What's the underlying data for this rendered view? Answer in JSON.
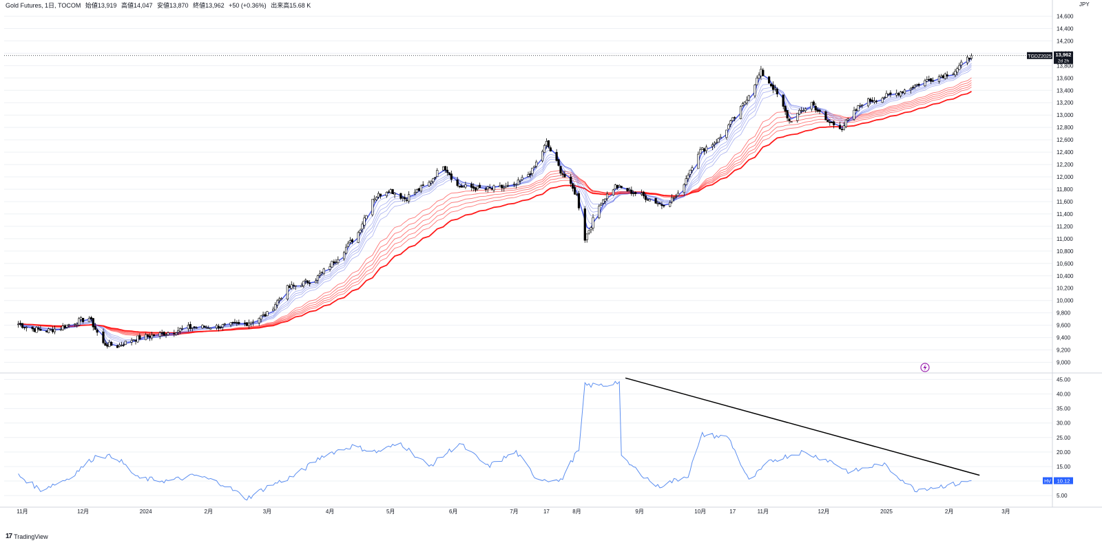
{
  "legend": {
    "symbol": "Gold Futures, 1日, TOCOM",
    "open_label": "始値",
    "open": "13,919",
    "high_label": "高値",
    "high": "14,047",
    "low_label": "安値",
    "low": "13,870",
    "close_label": "終値",
    "close": "13,962",
    "change": "+50 (+0.36%)",
    "volume_label": "出来高",
    "volume": "15.68 K"
  },
  "currency": "JPY",
  "brand": "TradingView",
  "price_tag": {
    "symbol": "TGDZ2025",
    "value": "13,962",
    "countdown": "2d 2h"
  },
  "hv_tag": {
    "name": "HV",
    "value": "10.12"
  },
  "colors": {
    "up_candle": "#ffffff",
    "down_candle": "#000000",
    "fast_ma": "#3f4fe0",
    "slow_ma": "#ff1a1a",
    "hv_line": "#5b8ef0",
    "trendline": "#000000",
    "grid": "#eef0f4"
  },
  "chart_data": [
    {
      "type": "candlestick",
      "title": "",
      "indicator": "Guppy Multiple Moving Average (fast: blue, slow: red)",
      "y_ticks": [
        "9,000",
        "9,200",
        "9,400",
        "9,600",
        "9,800",
        "10,000",
        "10,200",
        "10,400",
        "10,600",
        "10,800",
        "11,000",
        "11,200",
        "11,400",
        "11,600",
        "11,800",
        "12,000",
        "12,200",
        "12,400",
        "12,600",
        "12,800",
        "13,000",
        "13,200",
        "13,400",
        "13,600",
        "13,800",
        "14,000",
        "14,200",
        "14,400",
        "14,600"
      ],
      "ylim": [
        8850,
        14750
      ],
      "x_ticks": [
        "11月",
        "12月",
        "2024",
        "2月",
        "3月",
        "4月",
        "5月",
        "6月",
        "7月",
        "17",
        "8月",
        "9月",
        "10月",
        "17",
        "11月",
        "12月",
        "2025",
        "2月",
        "3月"
      ],
      "close_path": [
        {
          "d": "2023-10-30",
          "v": 9620
        },
        {
          "d": "2023-11-06",
          "v": 9540
        },
        {
          "d": "2023-11-13",
          "v": 9510
        },
        {
          "d": "2023-11-20",
          "v": 9560
        },
        {
          "d": "2023-11-27",
          "v": 9650
        },
        {
          "d": "2023-12-04",
          "v": 9720
        },
        {
          "d": "2023-12-11",
          "v": 9300
        },
        {
          "d": "2023-12-18",
          "v": 9260
        },
        {
          "d": "2023-12-26",
          "v": 9380
        },
        {
          "d": "2024-01-09",
          "v": 9460
        },
        {
          "d": "2024-01-22",
          "v": 9560
        },
        {
          "d": "2024-02-05",
          "v": 9580
        },
        {
          "d": "2024-02-19",
          "v": 9620
        },
        {
          "d": "2024-03-01",
          "v": 9780
        },
        {
          "d": "2024-03-11",
          "v": 10200
        },
        {
          "d": "2024-03-25",
          "v": 10350
        },
        {
          "d": "2024-04-05",
          "v": 10700
        },
        {
          "d": "2024-04-15",
          "v": 11100
        },
        {
          "d": "2024-04-22",
          "v": 11650
        },
        {
          "d": "2024-04-30",
          "v": 11800
        },
        {
          "d": "2024-05-08",
          "v": 11650
        },
        {
          "d": "2024-05-20",
          "v": 11900
        },
        {
          "d": "2024-05-27",
          "v": 12200
        },
        {
          "d": "2024-06-03",
          "v": 11850
        },
        {
          "d": "2024-06-17",
          "v": 11800
        },
        {
          "d": "2024-07-01",
          "v": 11850
        },
        {
          "d": "2024-07-10",
          "v": 12100
        },
        {
          "d": "2024-07-17",
          "v": 12550
        },
        {
          "d": "2024-07-24",
          "v": 12100
        },
        {
          "d": "2024-08-01",
          "v": 11700
        },
        {
          "d": "2024-08-05",
          "v": 11000
        },
        {
          "d": "2024-08-13",
          "v": 11600
        },
        {
          "d": "2024-08-20",
          "v": 11850
        },
        {
          "d": "2024-09-02",
          "v": 11700
        },
        {
          "d": "2024-09-12",
          "v": 11550
        },
        {
          "d": "2024-09-20",
          "v": 11700
        },
        {
          "d": "2024-09-30",
          "v": 12400
        },
        {
          "d": "2024-10-10",
          "v": 12600
        },
        {
          "d": "2024-10-21",
          "v": 13100
        },
        {
          "d": "2024-10-31",
          "v": 13700
        },
        {
          "d": "2024-11-07",
          "v": 13400
        },
        {
          "d": "2024-11-14",
          "v": 12900
        },
        {
          "d": "2024-11-25",
          "v": 13200
        },
        {
          "d": "2024-12-02",
          "v": 12900
        },
        {
          "d": "2024-12-10",
          "v": 12800
        },
        {
          "d": "2024-12-20",
          "v": 13200
        },
        {
          "d": "2025-01-06",
          "v": 13350
        },
        {
          "d": "2025-01-20",
          "v": 13550
        },
        {
          "d": "2025-02-03",
          "v": 13700
        },
        {
          "d": "2025-02-12",
          "v": 13962
        }
      ],
      "last": {
        "open": 13919,
        "high": 14047,
        "low": 13870,
        "close": 13962
      }
    },
    {
      "type": "line",
      "series_name": "HV",
      "y_ticks": [
        "5.00",
        "10.00",
        "15.00",
        "20.00",
        "25.00",
        "30.00",
        "35.00",
        "40.00",
        "45.00"
      ],
      "ylim": [
        1,
        47
      ],
      "values": [
        {
          "d": "2023-10-30",
          "v": 12
        },
        {
          "d": "2023-11-10",
          "v": 7
        },
        {
          "d": "2023-11-24",
          "v": 11
        },
        {
          "d": "2023-12-08",
          "v": 19
        },
        {
          "d": "2023-12-18",
          "v": 18
        },
        {
          "d": "2023-12-28",
          "v": 11
        },
        {
          "d": "2024-01-12",
          "v": 10
        },
        {
          "d": "2024-01-26",
          "v": 12
        },
        {
          "d": "2024-02-08",
          "v": 9
        },
        {
          "d": "2024-02-20",
          "v": 4
        },
        {
          "d": "2024-03-01",
          "v": 8
        },
        {
          "d": "2024-03-15",
          "v": 12
        },
        {
          "d": "2024-03-29",
          "v": 19
        },
        {
          "d": "2024-04-12",
          "v": 22
        },
        {
          "d": "2024-04-24",
          "v": 20
        },
        {
          "d": "2024-05-06",
          "v": 23
        },
        {
          "d": "2024-05-20",
          "v": 15
        },
        {
          "d": "2024-06-04",
          "v": 23
        },
        {
          "d": "2024-06-18",
          "v": 15
        },
        {
          "d": "2024-07-02",
          "v": 20
        },
        {
          "d": "2024-07-12",
          "v": 11
        },
        {
          "d": "2024-07-24",
          "v": 10
        },
        {
          "d": "2024-08-01",
          "v": 20
        },
        {
          "d": "2024-08-05",
          "v": 43
        },
        {
          "d": "2024-08-20",
          "v": 44
        },
        {
          "d": "2024-08-23",
          "v": 18
        },
        {
          "d": "2024-09-10",
          "v": 8
        },
        {
          "d": "2024-09-25",
          "v": 12
        },
        {
          "d": "2024-10-02",
          "v": 26
        },
        {
          "d": "2024-10-15",
          "v": 25
        },
        {
          "d": "2024-10-25",
          "v": 10
        },
        {
          "d": "2024-11-05",
          "v": 17
        },
        {
          "d": "2024-11-20",
          "v": 20
        },
        {
          "d": "2024-12-04",
          "v": 17
        },
        {
          "d": "2024-12-14",
          "v": 13
        },
        {
          "d": "2024-12-30",
          "v": 16
        },
        {
          "d": "2025-01-15",
          "v": 7
        },
        {
          "d": "2025-01-25",
          "v": 8
        },
        {
          "d": "2025-02-05",
          "v": 9
        },
        {
          "d": "2025-02-12",
          "v": 10.12
        }
      ],
      "trendline": [
        {
          "d": "2024-08-25",
          "v": 45.5
        },
        {
          "d": "2025-02-16",
          "v": 12
        }
      ]
    }
  ]
}
